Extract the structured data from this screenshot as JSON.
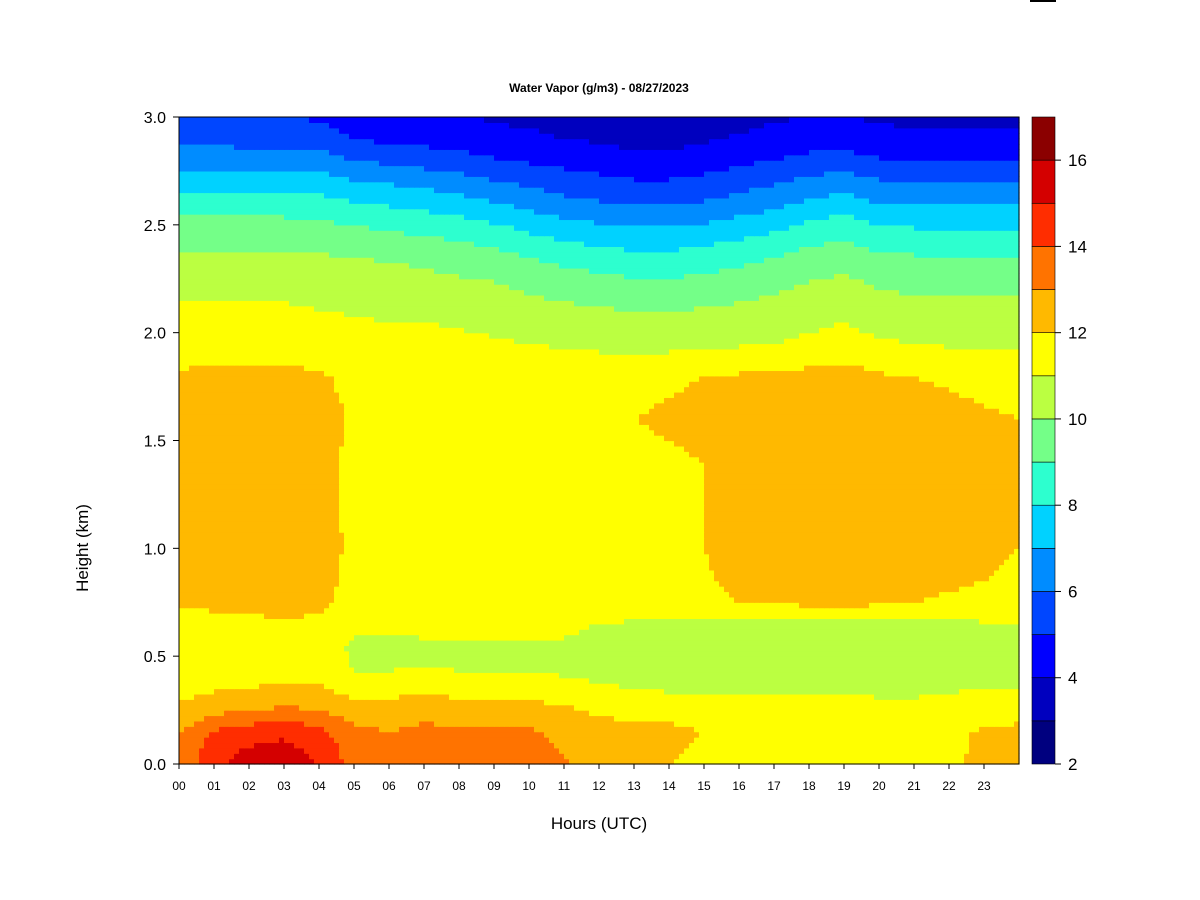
{
  "chart_data": {
    "type": "heatmap",
    "title": "Water Vapor (g/m3) - 08/27/2023",
    "xlabel": "Hours (UTC)",
    "ylabel": "Height (km)",
    "xlim": [
      0,
      24
    ],
    "ylim": [
      0,
      3.0
    ],
    "x_ticks": [
      0,
      1,
      2,
      3,
      4,
      5,
      6,
      7,
      8,
      9,
      10,
      11,
      12,
      13,
      14,
      15,
      16,
      17,
      18,
      19,
      20,
      21,
      22,
      23
    ],
    "x_tick_labels": [
      "00",
      "01",
      "02",
      "03",
      "04",
      "05",
      "06",
      "07",
      "08",
      "09",
      "10",
      "11",
      "12",
      "13",
      "14",
      "15",
      "16",
      "17",
      "18",
      "19",
      "20",
      "21",
      "22",
      "23"
    ],
    "y_ticks": [
      0.0,
      0.5,
      1.0,
      1.5,
      2.0,
      2.5,
      3.0
    ],
    "y_tick_labels": [
      "0.0",
      "0.5",
      "1.0",
      "1.5",
      "2.0",
      "2.5",
      "3.0"
    ],
    "colorbar": {
      "levels": [
        2,
        3,
        4,
        5,
        6,
        7,
        8,
        9,
        10,
        11,
        12,
        13,
        14,
        15,
        16,
        17
      ],
      "tick_values": [
        2,
        4,
        6,
        8,
        10,
        12,
        14,
        16
      ],
      "tick_labels": [
        "2",
        "4",
        "6",
        "8",
        "10",
        "12",
        "14",
        "16"
      ],
      "colors": [
        "#00007f",
        "#0000bf",
        "#0000ff",
        "#0046ff",
        "#008cff",
        "#00d2ff",
        "#2dffcf",
        "#74ff88",
        "#bbff41",
        "#ffff00",
        "#ffb900",
        "#ff7300",
        "#ff2d00",
        "#d40000",
        "#8b0000"
      ]
    },
    "z_units": "g/m3",
    "hours": [
      0,
      1,
      2,
      3,
      4,
      5,
      6,
      7,
      8,
      9,
      10,
      11,
      12,
      13,
      14,
      15,
      16,
      17,
      18,
      19,
      20,
      21,
      22,
      23,
      24
    ],
    "heights_km": [
      0.0,
      0.05,
      0.15,
      0.25,
      0.35,
      0.45,
      0.55,
      0.65,
      0.75,
      0.85,
      1.0,
      1.2,
      1.4,
      1.6,
      1.8,
      1.95,
      2.05,
      2.2,
      2.35,
      2.5,
      2.6,
      2.7,
      2.8,
      2.9,
      3.0
    ],
    "values": [
      [
        13.2,
        14.8,
        15.3,
        15.5,
        15.0,
        13.6,
        13.3,
        13.4,
        13.4,
        13.4,
        13.3,
        13.1,
        12.2,
        12.1,
        12.0,
        11.7,
        11.5,
        11.4,
        11.3,
        11.2,
        11.2,
        11.2,
        11.6,
        12.4,
        12.6
      ],
      [
        13.1,
        14.7,
        15.2,
        15.4,
        14.8,
        13.5,
        13.2,
        13.3,
        13.3,
        13.3,
        13.2,
        13.0,
        12.3,
        12.2,
        12.1,
        11.8,
        11.6,
        11.5,
        11.4,
        11.3,
        11.3,
        11.3,
        11.7,
        12.3,
        12.5
      ],
      [
        12.9,
        14.1,
        14.6,
        14.8,
        14.3,
        13.2,
        13.0,
        13.2,
        13.2,
        13.2,
        13.1,
        12.8,
        12.4,
        12.4,
        12.3,
        12.0,
        11.8,
        11.7,
        11.6,
        11.6,
        11.5,
        11.5,
        11.8,
        12.1,
        12.2
      ],
      [
        12.2,
        12.8,
        12.9,
        13.2,
        13.0,
        12.5,
        12.6,
        12.7,
        12.6,
        12.6,
        12.5,
        12.2,
        11.8,
        11.7,
        11.6,
        11.5,
        11.4,
        11.4,
        11.4,
        11.4,
        11.3,
        11.3,
        11.4,
        11.6,
        11.7
      ],
      [
        11.6,
        11.9,
        12.0,
        12.2,
        12.1,
        11.6,
        11.6,
        11.7,
        11.6,
        11.6,
        11.5,
        11.3,
        11.1,
        11.0,
        10.9,
        10.9,
        10.9,
        10.9,
        10.9,
        10.9,
        10.8,
        10.8,
        10.9,
        11.0,
        11.0
      ],
      [
        11.3,
        11.4,
        11.5,
        11.6,
        11.7,
        10.9,
        10.9,
        11.0,
        10.9,
        10.9,
        10.9,
        10.8,
        10.7,
        10.6,
        10.6,
        10.6,
        10.6,
        10.6,
        10.6,
        10.6,
        10.6,
        10.6,
        10.6,
        10.7,
        10.7
      ],
      [
        11.4,
        11.5,
        11.5,
        11.6,
        11.6,
        10.8,
        10.8,
        10.9,
        10.9,
        10.9,
        10.9,
        10.9,
        10.6,
        10.5,
        10.4,
        10.4,
        10.4,
        10.4,
        10.4,
        10.4,
        10.4,
        10.4,
        10.4,
        10.5,
        10.5
      ],
      [
        11.6,
        11.7,
        11.8,
        11.9,
        11.8,
        11.2,
        11.2,
        11.2,
        11.2,
        11.2,
        11.2,
        11.2,
        11.0,
        10.9,
        10.8,
        10.8,
        10.8,
        10.8,
        10.8,
        10.8,
        10.8,
        10.8,
        10.8,
        10.9,
        10.9
      ],
      [
        12.1,
        12.2,
        12.2,
        12.3,
        12.2,
        11.6,
        11.6,
        11.6,
        11.6,
        11.6,
        11.6,
        11.6,
        11.5,
        11.5,
        11.6,
        11.7,
        12.0,
        12.1,
        12.2,
        12.4,
        12.1,
        12.0,
        11.9,
        11.8,
        11.7
      ],
      [
        12.3,
        12.4,
        12.4,
        12.5,
        12.4,
        11.7,
        11.7,
        11.7,
        11.7,
        11.7,
        11.7,
        11.7,
        11.6,
        11.7,
        11.8,
        11.9,
        12.2,
        12.3,
        12.4,
        12.6,
        12.3,
        12.2,
        12.1,
        12.0,
        11.9
      ],
      [
        12.4,
        12.5,
        12.5,
        12.5,
        12.4,
        11.8,
        11.8,
        11.8,
        11.8,
        11.8,
        11.8,
        11.8,
        11.7,
        11.8,
        11.9,
        12.0,
        12.3,
        12.4,
        12.5,
        12.7,
        12.4,
        12.3,
        12.2,
        12.1,
        12.0
      ],
      [
        12.3,
        12.4,
        12.4,
        12.4,
        12.3,
        11.8,
        11.8,
        11.8,
        11.8,
        11.8,
        11.8,
        11.8,
        11.7,
        11.8,
        11.9,
        12.0,
        12.3,
        12.4,
        12.5,
        12.7,
        12.4,
        12.3,
        12.2,
        12.1,
        12.0
      ],
      [
        12.3,
        12.4,
        12.4,
        12.4,
        12.3,
        11.8,
        11.8,
        11.8,
        11.8,
        11.8,
        11.8,
        11.8,
        11.7,
        11.8,
        11.9,
        12.0,
        12.3,
        12.4,
        12.5,
        12.7,
        12.4,
        12.3,
        12.2,
        12.1,
        12.0
      ],
      [
        12.3,
        12.4,
        12.4,
        12.4,
        12.3,
        11.9,
        11.9,
        11.9,
        11.9,
        11.9,
        11.9,
        11.8,
        11.8,
        12.0,
        12.1,
        12.2,
        12.3,
        12.4,
        12.6,
        12.8,
        12.4,
        12.3,
        12.2,
        12.1,
        12.0
      ],
      [
        12.1,
        12.2,
        12.2,
        12.2,
        12.1,
        11.8,
        11.7,
        11.7,
        11.7,
        11.7,
        11.7,
        11.6,
        11.6,
        11.8,
        11.9,
        12.0,
        12.1,
        12.2,
        12.3,
        12.4,
        12.1,
        12.0,
        11.9,
        11.8,
        11.7
      ],
      [
        11.6,
        11.6,
        11.6,
        11.6,
        11.5,
        11.4,
        11.3,
        11.3,
        11.2,
        11.1,
        11.0,
        10.9,
        10.8,
        10.7,
        10.7,
        10.8,
        10.9,
        11.0,
        11.2,
        11.4,
        11.1,
        11.0,
        10.9,
        10.9,
        10.9
      ],
      [
        11.3,
        11.3,
        11.3,
        11.3,
        11.2,
        11.1,
        11.0,
        11.0,
        10.9,
        10.8,
        10.6,
        10.5,
        10.4,
        10.3,
        10.3,
        10.4,
        10.5,
        10.6,
        10.8,
        11.0,
        10.7,
        10.6,
        10.6,
        10.6,
        10.6
      ],
      [
        10.8,
        10.8,
        10.8,
        10.8,
        10.7,
        10.6,
        10.5,
        10.4,
        10.3,
        10.2,
        9.9,
        9.7,
        9.6,
        9.4,
        9.4,
        9.5,
        9.7,
        9.9,
        10.2,
        10.4,
        10.0,
        9.9,
        9.9,
        9.9,
        9.9
      ],
      [
        10.2,
        10.2,
        10.2,
        10.2,
        10.1,
        10.0,
        9.9,
        9.8,
        9.6,
        9.4,
        9.0,
        8.7,
        8.5,
        8.3,
        8.3,
        8.5,
        8.7,
        9.0,
        9.4,
        9.6,
        9.2,
        9.1,
        9.1,
        9.1,
        9.1
      ],
      [
        9.3,
        9.3,
        9.3,
        9.3,
        9.2,
        9.0,
        8.8,
        8.6,
        8.4,
        8.1,
        7.7,
        7.3,
        7.1,
        6.9,
        6.9,
        7.1,
        7.4,
        7.7,
        8.2,
        8.5,
        8.0,
        7.9,
        7.9,
        7.9,
        7.9
      ],
      [
        8.5,
        8.5,
        8.5,
        8.5,
        8.4,
        8.1,
        7.9,
        7.7,
        7.4,
        7.1,
        6.7,
        6.3,
        6.1,
        5.9,
        5.9,
        6.1,
        6.4,
        6.7,
        7.2,
        7.5,
        7.0,
        6.9,
        6.9,
        6.9,
        6.9
      ],
      [
        7.6,
        7.6,
        7.6,
        7.6,
        7.5,
        7.1,
        6.9,
        6.7,
        6.4,
        6.1,
        5.8,
        5.5,
        5.3,
        5.1,
        5.1,
        5.3,
        5.6,
        5.9,
        6.3,
        6.5,
        6.1,
        6.0,
        6.0,
        6.0,
        6.0
      ],
      [
        6.6,
        6.6,
        6.6,
        6.6,
        6.5,
        6.0,
        5.8,
        5.6,
        5.4,
        5.1,
        4.9,
        4.7,
        4.5,
        4.3,
        4.3,
        4.5,
        4.8,
        5.0,
        5.3,
        5.4,
        5.1,
        5.0,
        5.0,
        5.0,
        5.0
      ],
      [
        5.7,
        5.7,
        5.6,
        5.6,
        5.5,
        5.0,
        4.8,
        4.7,
        4.5,
        4.3,
        4.2,
        4.0,
        3.9,
        3.7,
        3.7,
        3.9,
        4.1,
        4.3,
        4.5,
        4.5,
        4.3,
        4.2,
        4.2,
        4.2,
        4.2
      ],
      [
        5.1,
        5.1,
        5.0,
        5.0,
        4.9,
        4.4,
        4.3,
        4.2,
        4.1,
        3.9,
        3.8,
        3.6,
        3.5,
        3.3,
        3.3,
        3.5,
        3.7,
        3.9,
        4.0,
        4.0,
        3.9,
        3.8,
        3.8,
        3.8,
        3.8
      ]
    ]
  }
}
